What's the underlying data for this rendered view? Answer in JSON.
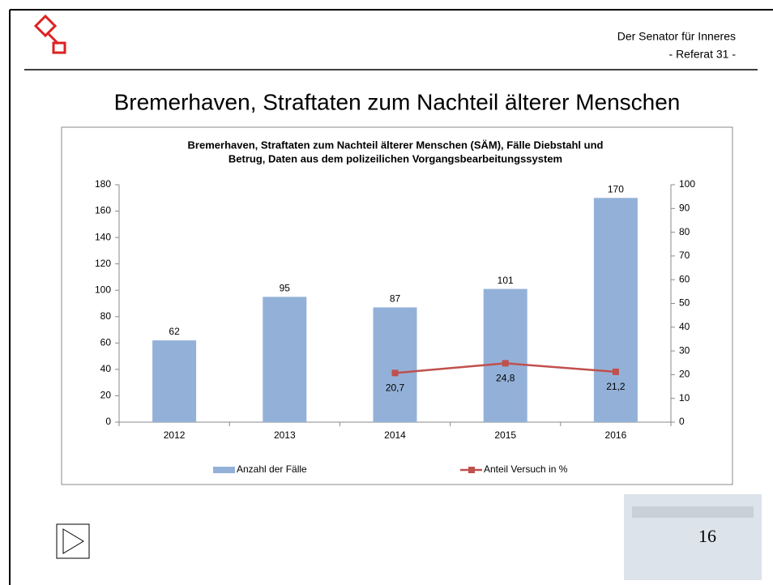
{
  "header": {
    "org": "Der Senator für Inneres",
    "unit": "- Referat 31 -",
    "title": "Bremerhaven, Straftaten zum Nachteil älterer Menschen"
  },
  "footer": {
    "page": "16"
  },
  "chart_data": {
    "type": "bar",
    "title": [
      "Bremerhaven, Straftaten zum Nachteil älterer Menschen (SÄM), Fälle Diebstahl und",
      "Betrug, Daten aus dem polizeilichen Vorgangsbearbeitungssystem"
    ],
    "categories": [
      "2012",
      "2013",
      "2014",
      "2015",
      "2016"
    ],
    "series": [
      {
        "name": "Anzahl der Fälle",
        "type": "bar",
        "color": "#93b1d8",
        "values": [
          62,
          95,
          87,
          101,
          170
        ]
      },
      {
        "name": "Anteil Versuch in %",
        "type": "line",
        "axis": "y2",
        "color": "#c0504d",
        "values": [
          null,
          null,
          20.7,
          24.8,
          21.2
        ],
        "value_labels": [
          null,
          null,
          "20,7",
          "24,8",
          "21,2"
        ]
      }
    ],
    "ylim": [
      0,
      180
    ],
    "yticks": [
      0,
      20,
      40,
      60,
      80,
      100,
      120,
      140,
      160,
      180
    ],
    "y2lim": [
      0,
      100
    ],
    "y2ticks": [
      0,
      10,
      20,
      30,
      40,
      50,
      60,
      70,
      80,
      90,
      100
    ],
    "grid": false,
    "legend": "bottom"
  }
}
